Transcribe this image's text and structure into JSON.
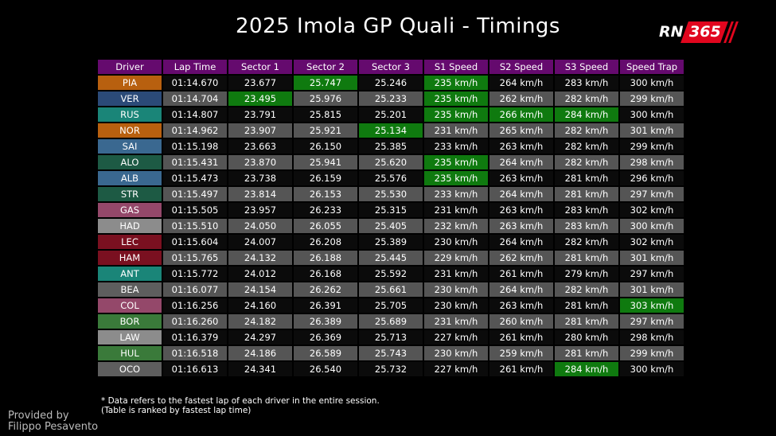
{
  "header": {
    "title": "2025 Imola GP Quali - Timings",
    "logo": [
      "RN",
      "365"
    ]
  },
  "table": {
    "columns": [
      "Driver",
      "Lap Time",
      "Sector 1",
      "Sector 2",
      "Sector 3",
      "S1 Speed",
      "S2 Speed",
      "S3 Speed",
      "Speed Trap"
    ],
    "header_color": "#650a6e",
    "highlight_color": "#0f7a0f",
    "rows": [
      {
        "color": "#b8600f",
        "best": [
          3,
          5
        ],
        "cells": [
          "PIA",
          "01:14.670",
          "23.677",
          "25.747",
          "25.246",
          "235 km/h",
          "264 km/h",
          "283 km/h",
          "300 km/h"
        ]
      },
      {
        "color": "#2b4a78",
        "best": [
          2,
          5
        ],
        "cells": [
          "VER",
          "01:14.704",
          "23.495",
          "25.976",
          "25.233",
          "235 km/h",
          "262 km/h",
          "282 km/h",
          "299 km/h"
        ]
      },
      {
        "color": "#1a8578",
        "best": [
          5,
          6,
          7
        ],
        "cells": [
          "RUS",
          "01:14.807",
          "23.791",
          "25.815",
          "25.201",
          "235 km/h",
          "266 km/h",
          "284 km/h",
          "300 km/h"
        ]
      },
      {
        "color": "#b8600f",
        "best": [
          4
        ],
        "cells": [
          "NOR",
          "01:14.962",
          "23.907",
          "25.921",
          "25.134",
          "231 km/h",
          "265 km/h",
          "282 km/h",
          "301 km/h"
        ]
      },
      {
        "color": "#3a6890",
        "best": [],
        "cells": [
          "SAI",
          "01:15.198",
          "23.663",
          "26.150",
          "25.385",
          "233 km/h",
          "263 km/h",
          "282 km/h",
          "299 km/h"
        ]
      },
      {
        "color": "#1d5a44",
        "best": [
          5
        ],
        "cells": [
          "ALO",
          "01:15.431",
          "23.870",
          "25.941",
          "25.620",
          "235 km/h",
          "264 km/h",
          "282 km/h",
          "298 km/h"
        ]
      },
      {
        "color": "#3a6890",
        "best": [
          5
        ],
        "cells": [
          "ALB",
          "01:15.473",
          "23.738",
          "26.159",
          "25.576",
          "235 km/h",
          "263 km/h",
          "281 km/h",
          "296 km/h"
        ]
      },
      {
        "color": "#1d5a44",
        "best": [],
        "cells": [
          "STR",
          "01:15.497",
          "23.814",
          "26.153",
          "25.530",
          "233 km/h",
          "264 km/h",
          "281 km/h",
          "297 km/h"
        ]
      },
      {
        "color": "#94486a",
        "best": [],
        "cells": [
          "GAS",
          "01:15.505",
          "23.957",
          "26.233",
          "25.315",
          "231 km/h",
          "263 km/h",
          "283 km/h",
          "302 km/h"
        ]
      },
      {
        "color": "#8c8c8c",
        "best": [],
        "cells": [
          "HAD",
          "01:15.510",
          "24.050",
          "26.055",
          "25.405",
          "232 km/h",
          "263 km/h",
          "283 km/h",
          "300 km/h"
        ]
      },
      {
        "color": "#7a1020",
        "best": [],
        "cells": [
          "LEC",
          "01:15.604",
          "24.007",
          "26.208",
          "25.389",
          "230 km/h",
          "264 km/h",
          "282 km/h",
          "302 km/h"
        ]
      },
      {
        "color": "#7a1020",
        "best": [],
        "cells": [
          "HAM",
          "01:15.765",
          "24.132",
          "26.188",
          "25.445",
          "229 km/h",
          "262 km/h",
          "281 km/h",
          "301 km/h"
        ]
      },
      {
        "color": "#1a8578",
        "best": [],
        "cells": [
          "ANT",
          "01:15.772",
          "24.012",
          "26.168",
          "25.592",
          "231 km/h",
          "261 km/h",
          "279 km/h",
          "297 km/h"
        ]
      },
      {
        "color": "#5e5e5e",
        "best": [],
        "cells": [
          "BEA",
          "01:16.077",
          "24.154",
          "26.262",
          "25.661",
          "230 km/h",
          "264 km/h",
          "282 km/h",
          "301 km/h"
        ]
      },
      {
        "color": "#94486a",
        "best": [
          8
        ],
        "cells": [
          "COL",
          "01:16.256",
          "24.160",
          "26.391",
          "25.705",
          "230 km/h",
          "263 km/h",
          "281 km/h",
          "303 km/h"
        ]
      },
      {
        "color": "#3a7a3a",
        "best": [],
        "cells": [
          "BOR",
          "01:16.260",
          "24.182",
          "26.389",
          "25.689",
          "231 km/h",
          "260 km/h",
          "281 km/h",
          "297 km/h"
        ]
      },
      {
        "color": "#8c8c8c",
        "best": [],
        "cells": [
          "LAW",
          "01:16.379",
          "24.297",
          "26.369",
          "25.713",
          "227 km/h",
          "261 km/h",
          "280 km/h",
          "298 km/h"
        ]
      },
      {
        "color": "#3a7a3a",
        "best": [],
        "cells": [
          "HUL",
          "01:16.518",
          "24.186",
          "26.589",
          "25.743",
          "230 km/h",
          "259 km/h",
          "281 km/h",
          "299 km/h"
        ]
      },
      {
        "color": "#5e5e5e",
        "best": [
          7
        ],
        "cells": [
          "OCO",
          "01:16.613",
          "24.341",
          "26.540",
          "25.732",
          "227 km/h",
          "261 km/h",
          "284 km/h",
          "300 km/h"
        ]
      }
    ]
  },
  "footnote": [
    "* Data refers to the fastest lap of each driver in the entire session.",
    "(Table is ranked by fastest lap time)"
  ],
  "credit": [
    "Provided by",
    "Filippo Pesavento"
  ]
}
